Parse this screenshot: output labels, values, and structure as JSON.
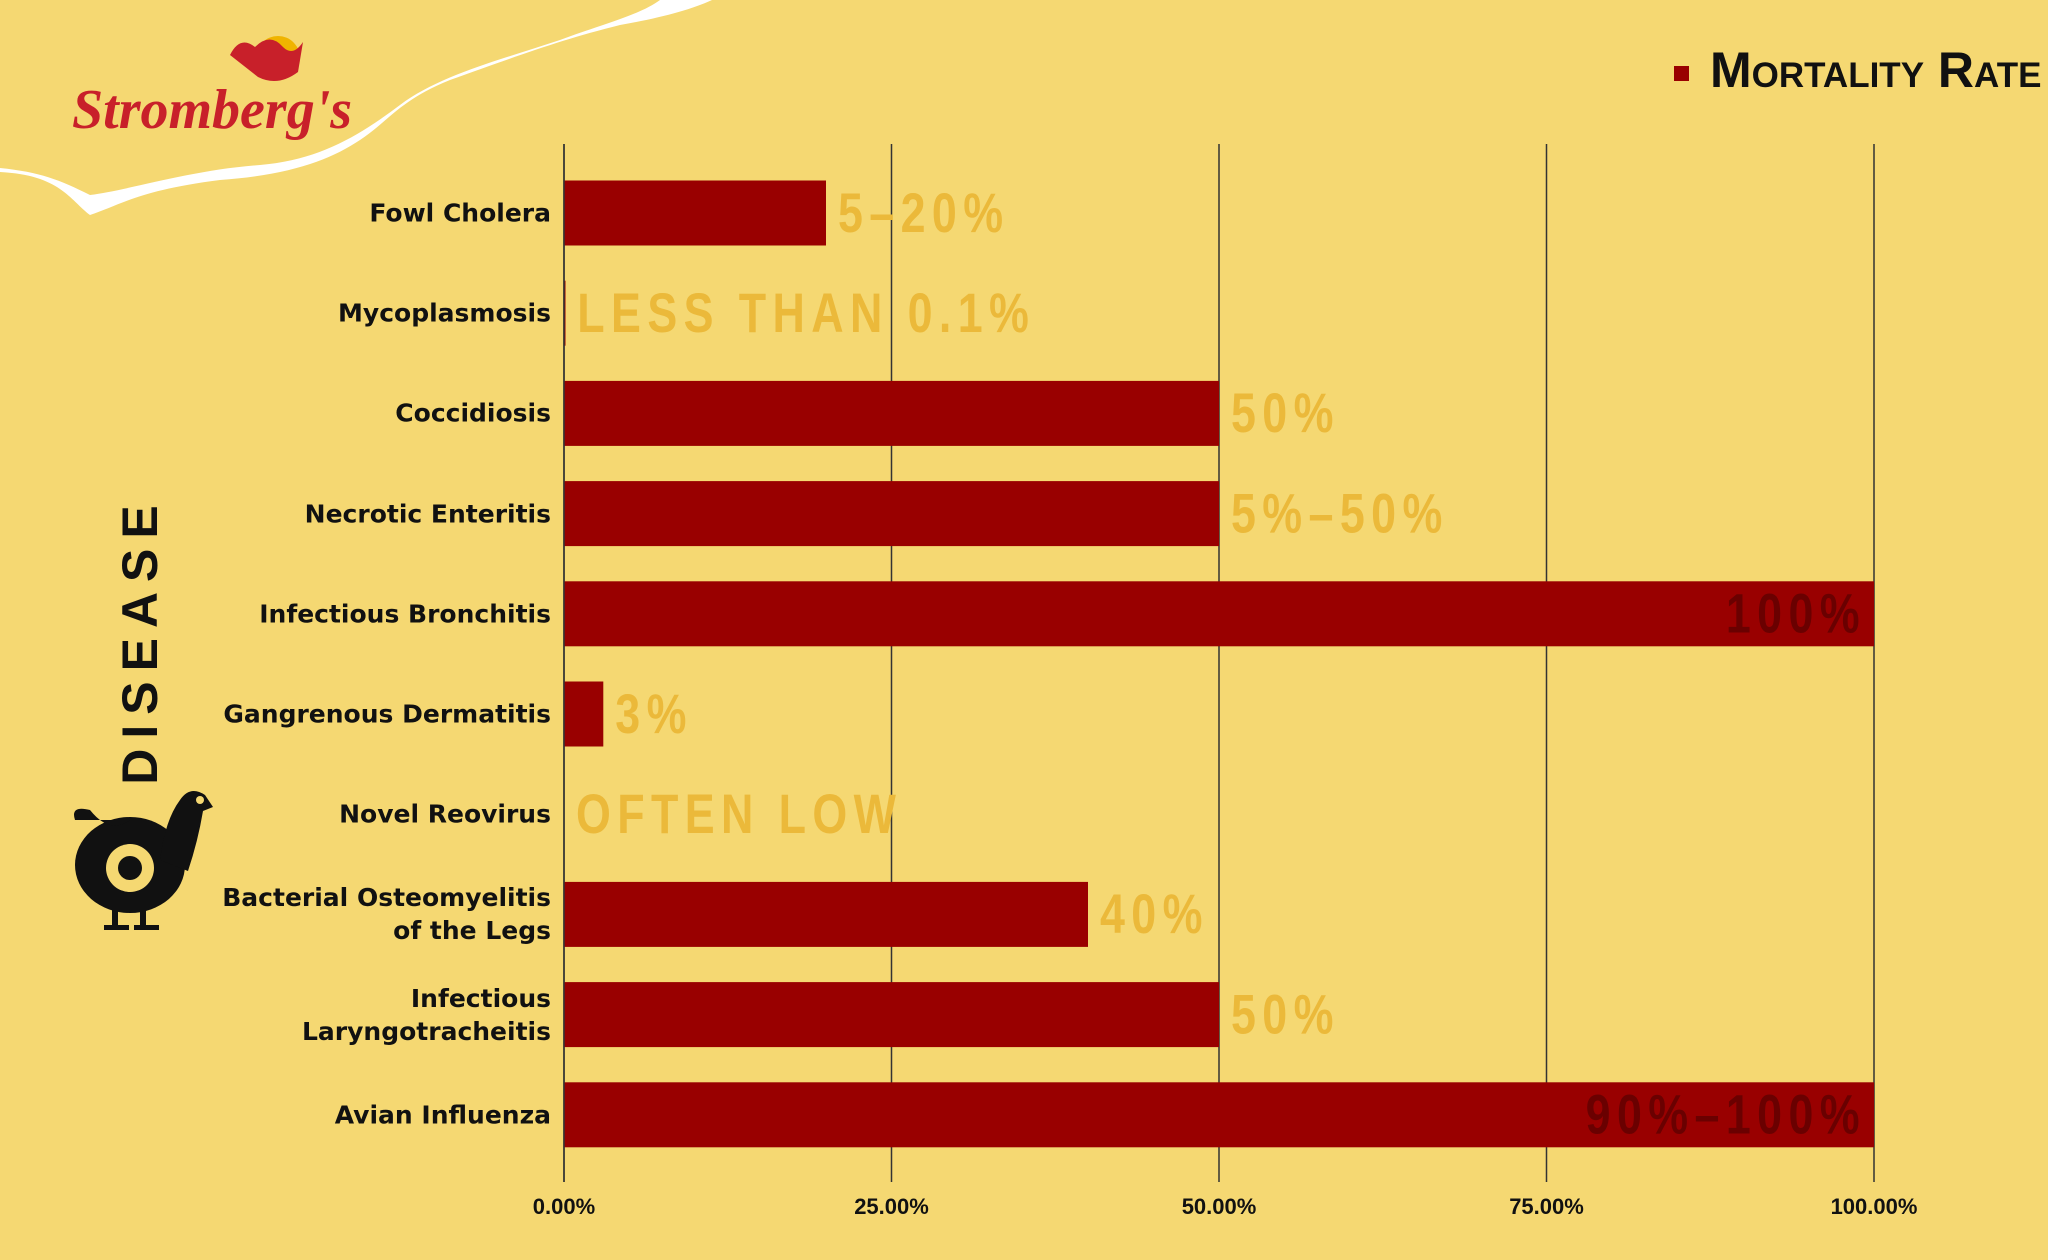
{
  "logo": "Stromberg's",
  "chart_data": {
    "type": "bar",
    "orientation": "horizontal",
    "y_axis_label": "DISEASE",
    "categories": [
      "Fowl Cholera",
      "Mycoplasmosis",
      "Coccidiosis",
      "Necrotic Enteritis",
      "Infectious Bronchitis",
      "Gangrenous Dermatitis",
      "Novel Reovirus",
      "Bacterial Osteomyelitis of the Legs",
      "Infectious Laryngotracheitis",
      "Avian Influenza"
    ],
    "series": [
      {
        "name": "Mortality Rate",
        "color": "#990000",
        "values": [
          20,
          0.1,
          50,
          50,
          100,
          3,
          null,
          40,
          50,
          100
        ],
        "value_labels": [
          "5–20%",
          "LESS THAN 0.1%",
          "50%",
          "5%–50%",
          "100%",
          "3%",
          "OFTEN LOW",
          "40%",
          "50%",
          "90%–100%"
        ]
      }
    ],
    "xlim": [
      0,
      100
    ],
    "xticks": [
      {
        "value": 0,
        "label": "0.00%"
      },
      {
        "value": 25,
        "label": "25.00%"
      },
      {
        "value": 50,
        "label": "50.00%"
      },
      {
        "value": 75,
        "label": "75.00%"
      },
      {
        "value": 100,
        "label": "100.00%"
      }
    ],
    "grid": true,
    "legend": "top-right"
  }
}
